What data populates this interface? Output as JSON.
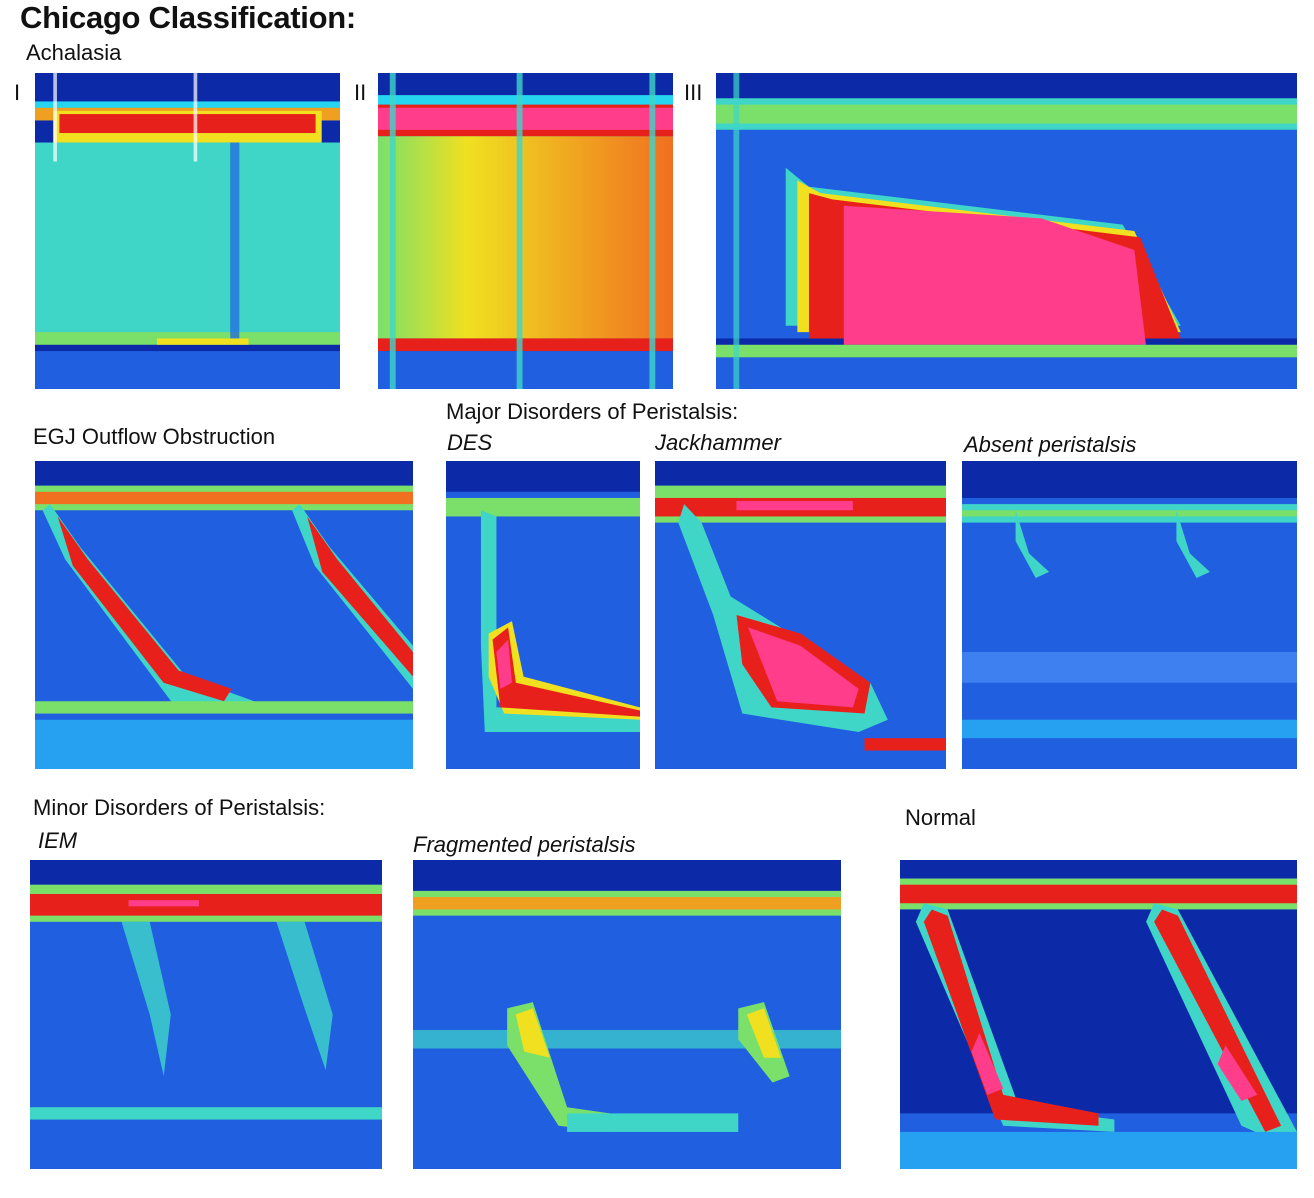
{
  "title": "Chicago Classification:",
  "sections": {
    "achalasia": "Achalasia",
    "egj": "EGJ Outflow Obstruction",
    "major": "Major Disorders of Peristalsis:",
    "minor": "Minor Disorders of Peristalsis:",
    "normal": "Normal"
  },
  "achalasia_types": [
    "I",
    "II",
    "III"
  ],
  "major_types": [
    "DES",
    "Jackhammer",
    "Absent peristalsis"
  ],
  "minor_types": [
    "IEM",
    "Fragmented peristalsis"
  ],
  "colors": {
    "background_blue": "#0c2aa8",
    "pressure_low": "#1f5fe0",
    "pressure_mid": "#3fd6c8",
    "pressure_high": "#e8201c",
    "pressure_max": "#ff3d8a"
  }
}
